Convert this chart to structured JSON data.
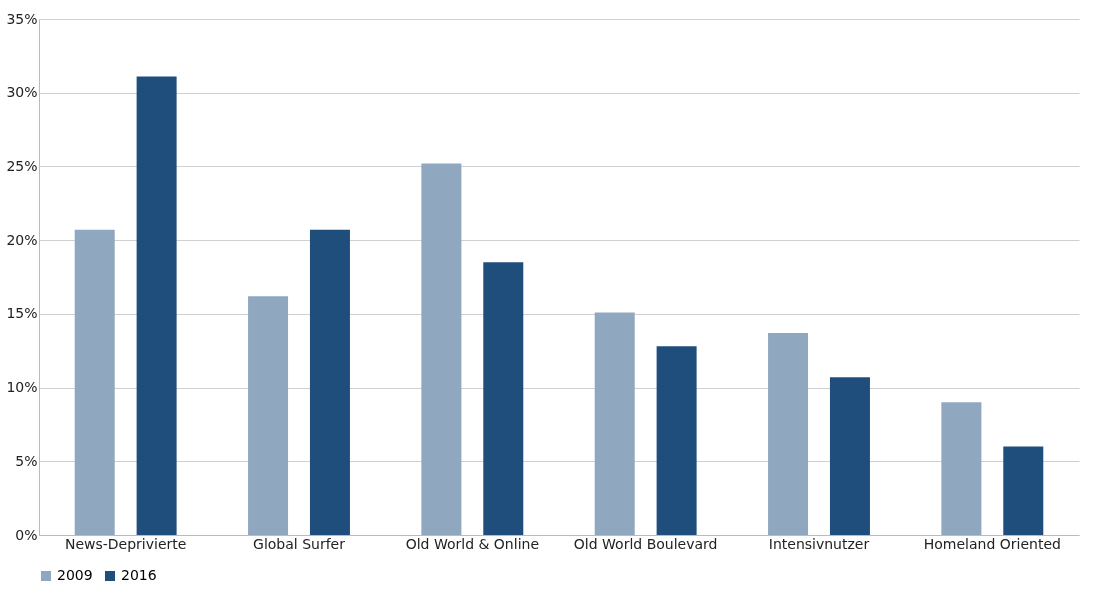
{
  "chart_data": {
    "type": "bar",
    "categories": [
      "News-Deprivierte",
      "Global Surfer",
      "Old World & Online",
      "Old World Boulevard",
      "Intensivnutzer",
      "Homeland Oriented"
    ],
    "series": [
      {
        "name": "2009",
        "color": "#8fa7bf",
        "values": [
          20.7,
          16.2,
          25.2,
          15.1,
          13.7,
          9.0
        ]
      },
      {
        "name": "2016",
        "color": "#1f4e7c",
        "values": [
          31.1,
          20.7,
          18.5,
          12.8,
          10.7,
          6.0
        ]
      }
    ],
    "ylim": [
      0,
      35
    ],
    "yticks": [
      {
        "value": 0,
        "label": "0%"
      },
      {
        "value": 5,
        "label": "5%"
      },
      {
        "value": 10,
        "label": "10%"
      },
      {
        "value": 15,
        "label": "15%"
      },
      {
        "value": 20,
        "label": "20%"
      },
      {
        "value": 25,
        "label": "25%"
      },
      {
        "value": 30,
        "label": "30%"
      },
      {
        "value": 35,
        "label": "35%"
      }
    ],
    "grid": "y",
    "legend": "bottom"
  }
}
